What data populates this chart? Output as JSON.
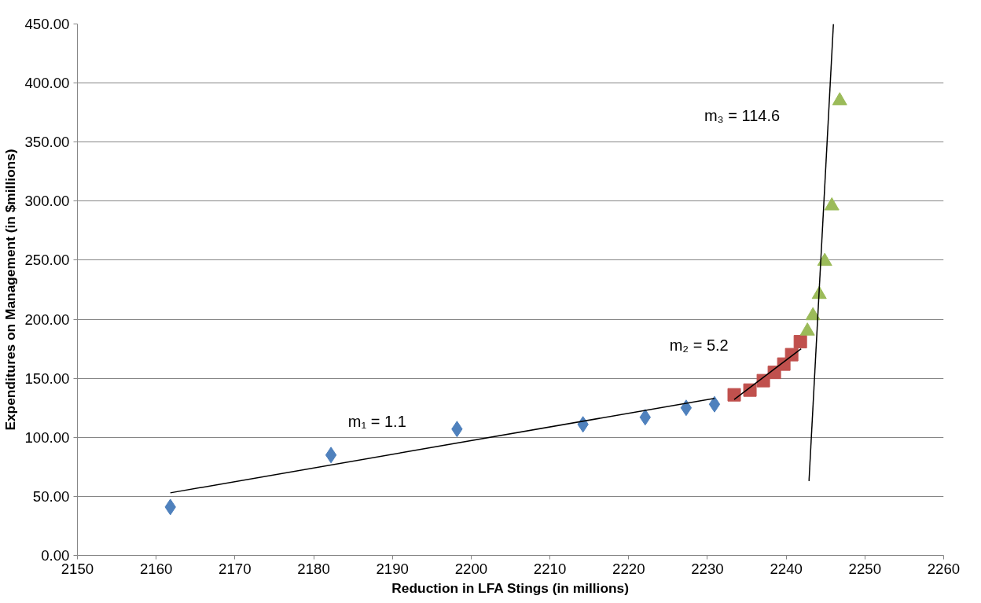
{
  "chart_data": {
    "type": "scatter",
    "xlabel": "Reduction in LFA Stings (in millions)",
    "ylabel": "Expenditures on Management (in $millions)",
    "xlim": [
      2150,
      2260
    ],
    "xticks": [
      2150,
      2160,
      2170,
      2180,
      2190,
      2200,
      2210,
      2220,
      2230,
      2240,
      2250,
      2260
    ],
    "ylim": [
      0,
      450
    ],
    "yticks": [
      {
        "value": 0,
        "label": "0.00"
      },
      {
        "value": 50,
        "label": "50.00"
      },
      {
        "value": 100,
        "label": "100.00"
      },
      {
        "value": 150,
        "label": "150.00"
      },
      {
        "value": 200,
        "label": "200.00"
      },
      {
        "value": 250,
        "label": "250.00"
      },
      {
        "value": 300,
        "label": "300.00"
      },
      {
        "value": 350,
        "label": "350.00"
      },
      {
        "value": 400,
        "label": "400.00"
      },
      {
        "value": 450,
        "label": "450.00"
      }
    ],
    "grid": "y",
    "series": [
      {
        "marker": "diamond",
        "color": "#4f81bd",
        "x": [
          2161.8,
          2182.2,
          2198.2,
          2214.2,
          2222.1,
          2227.3,
          2230.9
        ],
        "values": [
          41,
          85,
          107,
          111,
          117,
          125,
          128
        ]
      },
      {
        "marker": "square",
        "color": "#c0504d",
        "x": [
          2233.4,
          2235.4,
          2237.1,
          2238.5,
          2239.7,
          2240.7,
          2241.8
        ],
        "values": [
          136,
          140,
          148,
          155,
          162,
          170,
          181
        ]
      },
      {
        "marker": "triangle",
        "color": "#9bbb59",
        "x": [
          2242.7,
          2243.4,
          2244.2,
          2244.9,
          2245.8,
          2246.8
        ],
        "values": [
          190,
          203,
          221,
          249,
          296,
          385
        ]
      },
      {
        "type": "line",
        "marker": "none",
        "color": "#000000",
        "x": [
          2161.8,
          2230.9
        ],
        "values": [
          53,
          133
        ]
      },
      {
        "type": "line",
        "marker": "none",
        "color": "#000000",
        "x": [
          2233.4,
          2241.9
        ],
        "values": [
          132,
          175
        ]
      },
      {
        "type": "line",
        "marker": "none",
        "color": "#000000",
        "x": [
          2242.9,
          2246.0
        ],
        "values": [
          63,
          450
        ]
      }
    ],
    "annotations": [
      "m₁ = 1.1",
      "m₂ = 5.2",
      "m₃ = 114.6"
    ]
  }
}
